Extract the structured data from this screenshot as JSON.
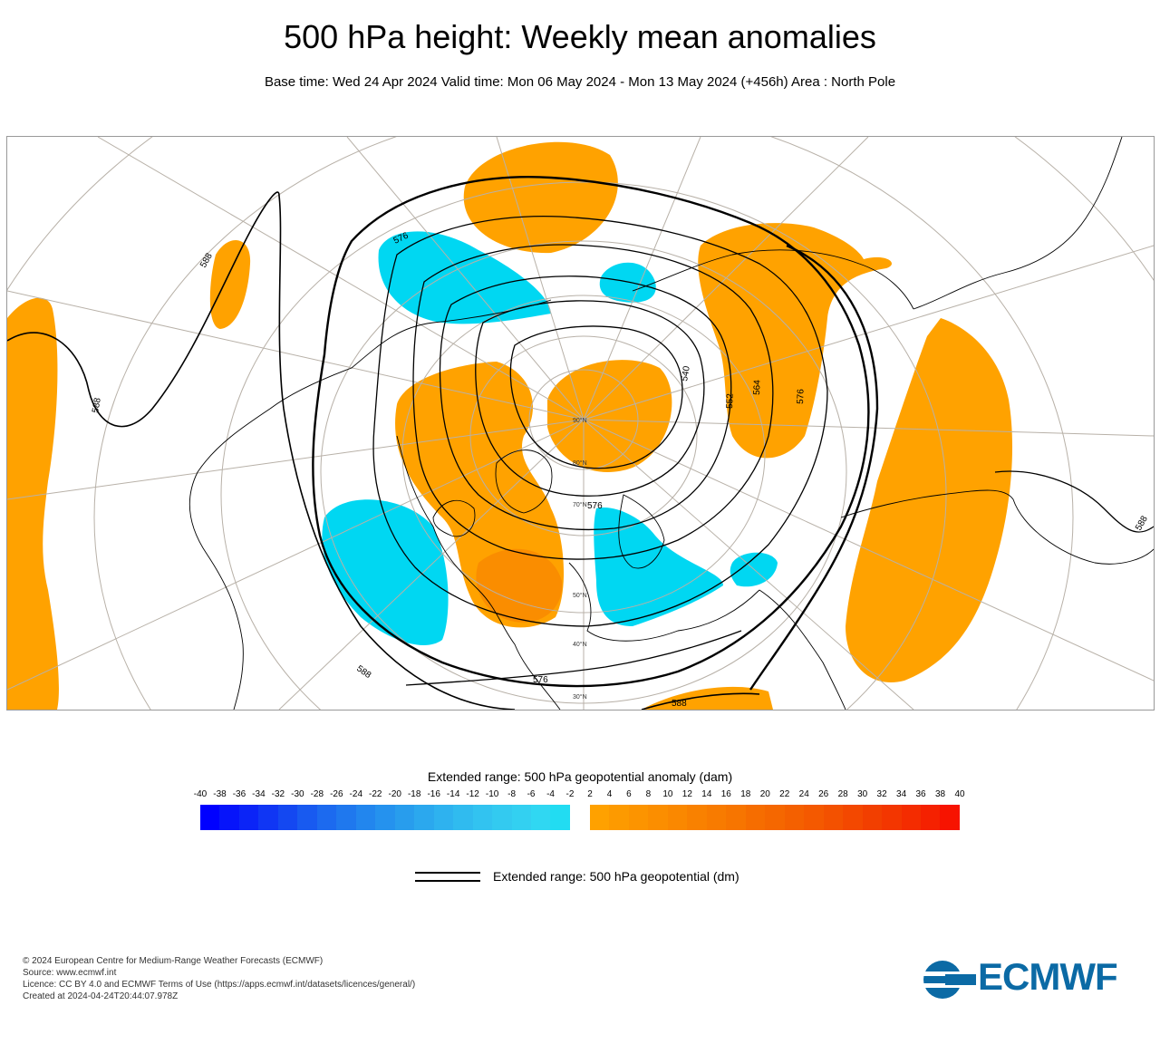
{
  "header": {
    "title": "500 hPa height: Weekly mean anomalies",
    "subtitle": "Base time: Wed 24 Apr 2024 Valid time: Mon 06 May 2024 - Mon 13 May 2024 (+456h) Area : North Pole"
  },
  "map": {
    "projection": "north-polar-stereographic",
    "contour_labels": [
      "576",
      "588",
      "588",
      "576",
      "588",
      "564",
      "576",
      "552",
      "540",
      "588",
      "576",
      "588"
    ],
    "latitude_labels": [
      "90°N",
      "80°N",
      "70°N",
      "50°N",
      "40°N",
      "30°N"
    ],
    "colors": {
      "positive_anomaly": "#ffa200",
      "negative_anomaly": "#00d4f0",
      "contour": "#000000",
      "coastline": "#000000",
      "graticule": "#b8b1a8"
    }
  },
  "colorbar": {
    "title": "Extended range: 500 hPa geopotential anomaly (dam)",
    "tick_labels": [
      "-40",
      "-38",
      "-36",
      "-34",
      "-32",
      "-30",
      "-28",
      "-26",
      "-24",
      "-22",
      "-20",
      "-18",
      "-16",
      "-14",
      "-12",
      "-10",
      "-8",
      "-6",
      "-4",
      "-2",
      "2",
      "4",
      "6",
      "8",
      "10",
      "12",
      "14",
      "16",
      "18",
      "20",
      "22",
      "24",
      "26",
      "28",
      "30",
      "32",
      "34",
      "36",
      "38",
      "40"
    ],
    "negative_colors": [
      "#0000ff",
      "#0614fa",
      "#0b24f7",
      "#1036f4",
      "#1448f1",
      "#185af0",
      "#1c6aef",
      "#1f78ee",
      "#2286ee",
      "#2592ee",
      "#289ded",
      "#2ba8ee",
      "#2eb2ef",
      "#30bbef",
      "#32c3f0",
      "#33caf0",
      "#33d0f1",
      "#30d7f2",
      "#22dcf2"
    ],
    "positive_colors": [
      "#ffa100",
      "#fd9a00",
      "#fc9400",
      "#fb8e00",
      "#fa8800",
      "#f98100",
      "#f87b00",
      "#f77500",
      "#f66d00",
      "#f56700",
      "#f46000",
      "#f45900",
      "#f35100",
      "#f34800",
      "#f23f00",
      "#f33600",
      "#f42c00",
      "#f52100",
      "#f71300"
    ]
  },
  "legend": {
    "line_label": "Extended range: 500 hPa geopotential (dm)"
  },
  "footer": {
    "lines": [
      "© 2024 European Centre for Medium-Range Weather Forecasts (ECMWF)",
      "Source: www.ecmwf.int",
      "Licence: CC BY 4.0 and ECMWF Terms of Use (https://apps.ecmwf.int/datasets/licences/general/)",
      "Created at 2024-04-24T20:44:07.978Z"
    ]
  },
  "logo": {
    "text": "ECMWF",
    "color": "#0b6aa5"
  }
}
